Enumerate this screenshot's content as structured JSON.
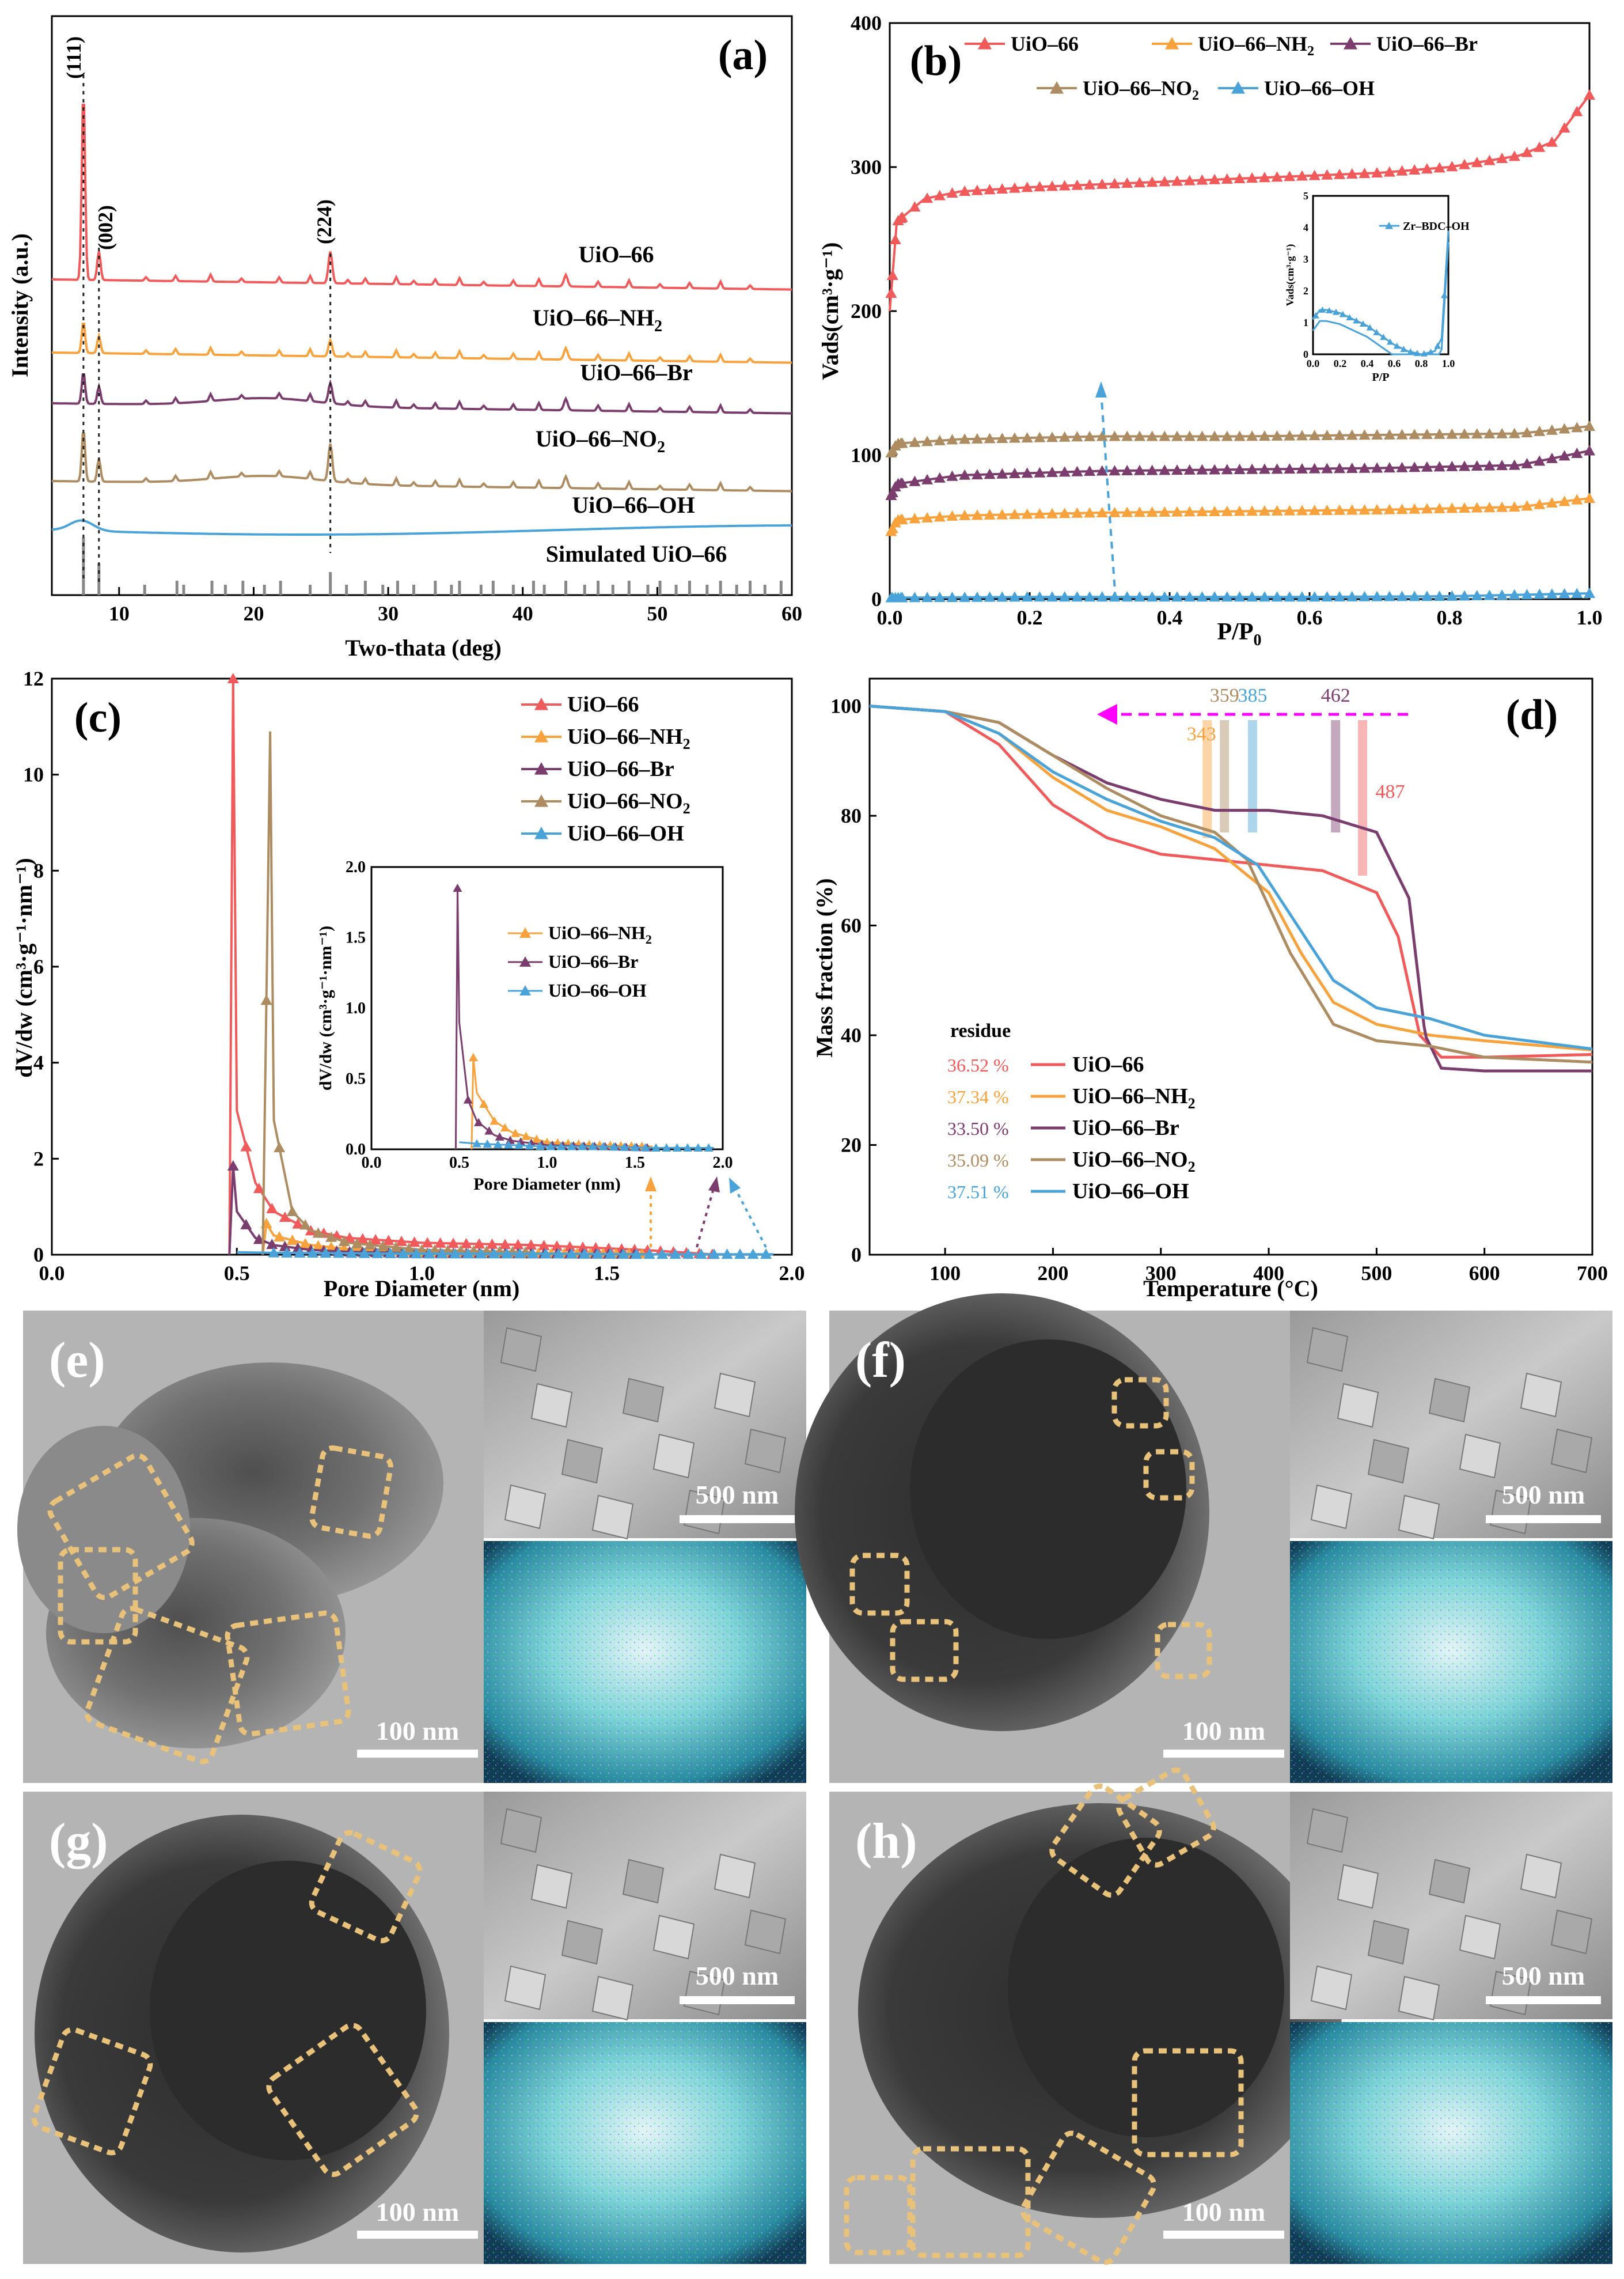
{
  "colors": {
    "uio66": "#f05a5a",
    "nh2": "#f7a23c",
    "br": "#7a3d6e",
    "no2": "#ad8c62",
    "oh": "#4aa3d8",
    "magenta": "#ff00ff",
    "scale": "#ffffff",
    "dash": "#e8c27a"
  },
  "panel_a": {
    "label": "(a)",
    "peak_111": "(111)",
    "peak_002": "(002)",
    "peak_224": "(224)",
    "trace_labels": [
      "UiO–66",
      "UiO–66–NH",
      "UiO–66–Br",
      "UiO–66–NO",
      "UiO–66–OH",
      "Simulated UiO–66"
    ],
    "subscript_2": "2"
  },
  "panel_b": {
    "label": "(b)",
    "inset_legend": "Zr–BDC–OH"
  },
  "panel_c": {
    "label": "(c)"
  },
  "panel_d": {
    "label": "(d)",
    "residue_label": "residue",
    "residues": [
      "36.52 %",
      "37.34 %",
      "33.50 %",
      "35.09 %",
      "37.51 %"
    ],
    "temp_marks": [
      "343",
      "359",
      "385",
      "462",
      "487"
    ]
  },
  "legend_names": [
    "UiO–66",
    "UiO–66–NH",
    "UiO–66–Br",
    "UiO–66–NO",
    "UiO–66–OH"
  ],
  "images": {
    "e": {
      "label": "(e)",
      "tem_scale": "100 nm",
      "sem_scale": "500 nm"
    },
    "f": {
      "label": "(f)",
      "tem_scale": "100 nm",
      "sem_scale": "500 nm"
    },
    "g": {
      "label": "(g)",
      "tem_scale": "100 nm",
      "sem_scale": "500 nm"
    },
    "h": {
      "label": "(h)",
      "tem_scale": "100 nm",
      "sem_scale": "500 nm"
    }
  },
  "chart_data": [
    {
      "panel": "a",
      "type": "line",
      "title": "",
      "xlabel": "Two-thata (deg)",
      "ylabel": "Intensity (a.u.)",
      "xlim": [
        5,
        60
      ],
      "xticks": [
        10,
        20,
        30,
        40,
        50,
        60
      ],
      "series": [
        {
          "name": "UiO–66",
          "color": "#f05a5a"
        },
        {
          "name": "UiO–66–NH2",
          "color": "#f7a23c"
        },
        {
          "name": "UiO–66–Br",
          "color": "#7a3d6e"
        },
        {
          "name": "UiO–66–NO2",
          "color": "#ad8c62"
        },
        {
          "name": "UiO–66–OH",
          "color": "#4aa3d8"
        },
        {
          "name": "Simulated UiO–66",
          "color": "#888888"
        }
      ],
      "peaks_deg": [
        7.4,
        8.5,
        25.7
      ],
      "peak_labels": [
        "(111)",
        "(002)",
        "(224)"
      ]
    },
    {
      "panel": "b",
      "type": "line",
      "xlabel": "P/P",
      "xlabel_sub": "0",
      "ylabel": "Vads(cm³·g⁻¹)",
      "xlim": [
        0.0,
        1.0
      ],
      "ylim": [
        0,
        400
      ],
      "xticks": [
        0.0,
        0.2,
        0.4,
        0.6,
        0.8,
        1.0
      ],
      "yticks": [
        0,
        100,
        200,
        300,
        400
      ],
      "series": [
        {
          "name": "UiO–66",
          "x": [
            0.0,
            0.01,
            0.05,
            0.1,
            0.2,
            0.3,
            0.4,
            0.5,
            0.6,
            0.7,
            0.8,
            0.9,
            0.95,
            1.0
          ],
          "y": [
            200,
            262,
            278,
            283,
            286,
            288,
            290,
            292,
            294,
            296,
            300,
            308,
            318,
            350
          ]
        },
        {
          "name": "UiO–66–NH2",
          "x": [
            0.0,
            0.01,
            0.1,
            0.3,
            0.5,
            0.7,
            0.9,
            1.0
          ],
          "y": [
            45,
            55,
            58,
            60,
            61,
            62,
            64,
            70
          ]
        },
        {
          "name": "UiO–66–Br",
          "x": [
            0.0,
            0.01,
            0.1,
            0.3,
            0.5,
            0.7,
            0.9,
            1.0
          ],
          "y": [
            70,
            80,
            86,
            89,
            90,
            91,
            93,
            103
          ]
        },
        {
          "name": "UiO–66–NO2",
          "x": [
            0.0,
            0.01,
            0.1,
            0.3,
            0.5,
            0.7,
            0.9,
            1.0
          ],
          "y": [
            100,
            108,
            111,
            113,
            113,
            114,
            115,
            120
          ]
        },
        {
          "name": "UiO–66–OH",
          "x": [
            0.0,
            0.2,
            0.4,
            0.6,
            0.8,
            1.0
          ],
          "y": [
            1,
            1.5,
            1.5,
            1.5,
            2,
            4
          ]
        }
      ],
      "inset": {
        "xlabel": "P/P",
        "ylabel": "Vads(cm³·g⁻¹)",
        "xlim": [
          0.0,
          1.0
        ],
        "ylim": [
          0,
          5
        ],
        "xticks": [
          0.0,
          0.2,
          0.4,
          0.6,
          0.8,
          1.0
        ],
        "yticks": [
          0,
          1,
          2,
          3,
          4,
          5
        ],
        "series": [
          {
            "name": "Zr–BDC–OH",
            "x": [
              0.0,
              0.05,
              0.1,
              0.2,
              0.3,
              0.4,
              0.5,
              0.6,
              0.7,
              0.8,
              0.9,
              0.95,
              1.0
            ],
            "y": [
              1.1,
              1.4,
              1.4,
              1.3,
              1.1,
              0.9,
              0.6,
              0.3,
              0.1,
              0.0,
              0.1,
              0.5,
              3.9
            ]
          }
        ]
      }
    },
    {
      "panel": "c",
      "type": "line",
      "xlabel": "Pore Diameter (nm)",
      "ylabel": "dV/dw (cm³·g⁻¹·nm⁻¹)",
      "xlim": [
        0.0,
        2.0
      ],
      "ylim": [
        0,
        12
      ],
      "xticks": [
        0.0,
        0.5,
        1.0,
        1.5,
        2.0
      ],
      "yticks": [
        0,
        2,
        4,
        6,
        8,
        10,
        12
      ],
      "series": [
        {
          "name": "UiO–66",
          "x": [
            0.48,
            0.49,
            0.5,
            0.55,
            0.6,
            0.7,
            0.8,
            1.0,
            1.3,
            1.6,
            1.8
          ],
          "y": [
            0,
            12,
            3.0,
            1.5,
            0.9,
            0.5,
            0.35,
            0.25,
            0.2,
            0.1,
            0
          ]
        },
        {
          "name": "UiO–66–NH2",
          "x": [
            0.57,
            0.58,
            0.6,
            0.7,
            0.8,
            1.0,
            1.3,
            1.6
          ],
          "y": [
            0,
            0.65,
            0.4,
            0.2,
            0.12,
            0.05,
            0.03,
            0.02
          ]
        },
        {
          "name": "UiO–66–Br",
          "x": [
            0.48,
            0.49,
            0.5,
            0.55,
            0.6,
            0.7,
            0.8,
            1.0,
            1.3,
            1.6
          ],
          "y": [
            0,
            1.85,
            0.9,
            0.35,
            0.2,
            0.1,
            0.06,
            0.03,
            0.02,
            0.01
          ]
        },
        {
          "name": "UiO–66–NO2",
          "x": [
            0.57,
            0.58,
            0.59,
            0.6,
            0.65,
            0.7,
            0.8,
            1.0,
            1.3
          ],
          "y": [
            0,
            5.3,
            10.9,
            2.8,
            0.9,
            0.5,
            0.25,
            0.1,
            0.05
          ]
        },
        {
          "name": "UiO–66–OH",
          "x": [
            0.5,
            0.6,
            0.8,
            1.0,
            1.3,
            1.6,
            1.95
          ],
          "y": [
            0.05,
            0.04,
            0.03,
            0.02,
            0.02,
            0.01,
            0.01
          ]
        }
      ],
      "inset": {
        "xlabel": "Pore Diameter (nm)",
        "ylabel": "dV/dw (cm³·g⁻¹·nm⁻¹)",
        "xlim": [
          0.0,
          2.0
        ],
        "ylim": [
          0,
          2.0
        ],
        "xticks": [
          0.0,
          0.5,
          1.0,
          1.5,
          2.0
        ],
        "yticks": [
          0.0,
          0.5,
          1.0,
          1.5,
          2.0
        ],
        "series": [
          "UiO–66–NH2",
          "UiO–66–Br",
          "UiO–66–OH"
        ]
      }
    },
    {
      "panel": "d",
      "type": "line",
      "xlabel": "Temperature (°C)",
      "ylabel": "Mass fraction (%)",
      "xlim": [
        30,
        700
      ],
      "ylim": [
        0,
        105
      ],
      "xticks": [
        100,
        200,
        300,
        400,
        500,
        600,
        700
      ],
      "yticks": [
        0,
        20,
        40,
        60,
        80,
        100
      ],
      "series": [
        {
          "name": "UiO–66",
          "x": [
            30,
            100,
            150,
            200,
            250,
            300,
            350,
            400,
            450,
            500,
            520,
            540,
            560,
            600,
            700
          ],
          "y": [
            100,
            99,
            93,
            82,
            76,
            73,
            72,
            71,
            70,
            66,
            58,
            40,
            36,
            36,
            36.5
          ]
        },
        {
          "name": "UiO–66–NH2",
          "x": [
            30,
            100,
            150,
            200,
            250,
            300,
            350,
            400,
            430,
            460,
            500,
            550,
            600,
            700
          ],
          "y": [
            100,
            99,
            95,
            87,
            81,
            78,
            74,
            66,
            55,
            46,
            42,
            40,
            39,
            37.3
          ]
        },
        {
          "name": "UiO–66–Br",
          "x": [
            30,
            100,
            150,
            200,
            250,
            300,
            350,
            400,
            450,
            500,
            530,
            545,
            560,
            600,
            700
          ],
          "y": [
            100,
            99,
            97,
            91,
            86,
            83,
            81,
            81,
            80,
            77,
            65,
            40,
            34,
            33.5,
            33.5
          ]
        },
        {
          "name": "UiO–66–NO2",
          "x": [
            30,
            100,
            150,
            200,
            250,
            300,
            350,
            380,
            420,
            460,
            500,
            550,
            600,
            700
          ],
          "y": [
            100,
            99,
            97,
            91,
            85,
            80,
            77,
            72,
            55,
            42,
            39,
            38,
            36,
            35.1
          ]
        },
        {
          "name": "UiO–66–OH",
          "x": [
            30,
            100,
            150,
            200,
            250,
            300,
            350,
            390,
            420,
            460,
            500,
            550,
            600,
            700
          ],
          "y": [
            100,
            99,
            95,
            88,
            83,
            79,
            76,
            71,
            62,
            50,
            45,
            43,
            40,
            37.5
          ]
        }
      ]
    }
  ]
}
